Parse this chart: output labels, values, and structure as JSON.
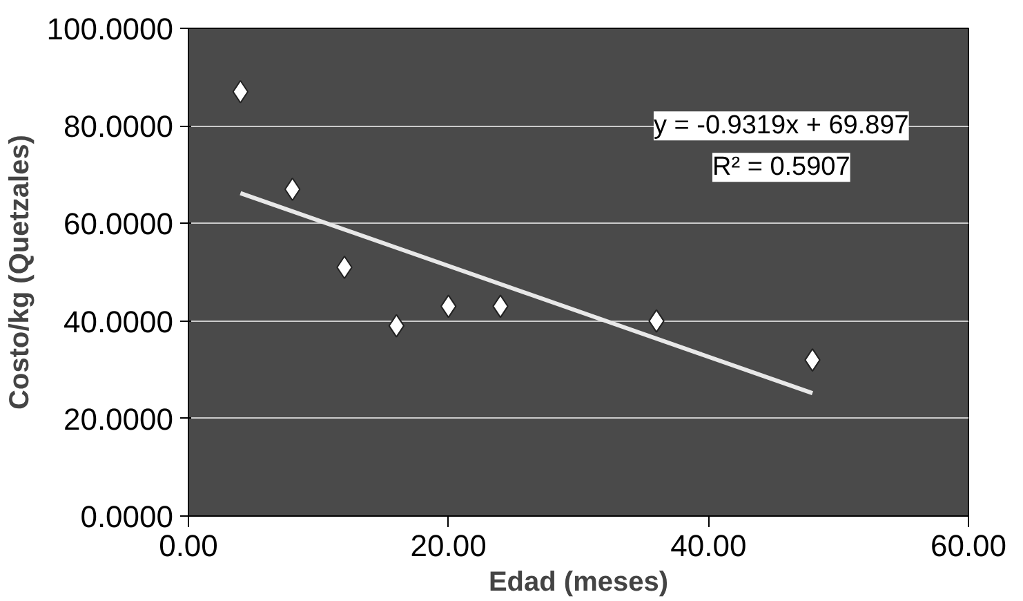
{
  "chart_data": {
    "type": "scatter",
    "xlabel": "Edad (meses)",
    "ylabel": "Costo/kg (Quetzales)",
    "xlim": [
      0,
      60
    ],
    "ylim": [
      0,
      100
    ],
    "xticks": [
      {
        "value": 0,
        "label": "0.00"
      },
      {
        "value": 20,
        "label": "20.00"
      },
      {
        "value": 40,
        "label": "40.00"
      },
      {
        "value": 60,
        "label": "60.00"
      }
    ],
    "yticks": [
      {
        "value": 0,
        "label": "0.0000"
      },
      {
        "value": 20,
        "label": "20.0000"
      },
      {
        "value": 40,
        "label": "40.0000"
      },
      {
        "value": 60,
        "label": "60.0000"
      },
      {
        "value": 80,
        "label": "80.0000"
      },
      {
        "value": 100,
        "label": "100.0000"
      }
    ],
    "grid": "y",
    "series": [
      {
        "marker": "diamond",
        "color": "#ffffff",
        "x": [
          4,
          8,
          12,
          16,
          20,
          24,
          36,
          48
        ],
        "values": [
          87,
          67,
          51,
          39,
          43,
          43,
          40,
          32
        ]
      },
      {
        "type": "line",
        "color": "#e8e8e8",
        "x": [
          4,
          48
        ],
        "values": [
          66.2,
          25.2
        ]
      }
    ],
    "annotations": [
      "y = -0.9319x + 69.897",
      "R² = 0.5907"
    ]
  }
}
